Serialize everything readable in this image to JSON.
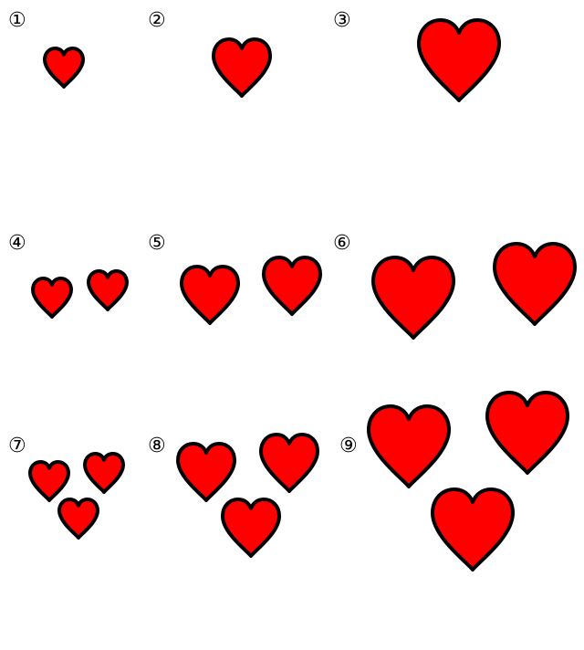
{
  "colors": {
    "heart_fill": "#ff0000",
    "heart_stroke": "#000000",
    "background": "#ffffff"
  },
  "panels": [
    {
      "label": "①",
      "heart_count": 1
    },
    {
      "label": "②",
      "heart_count": 1
    },
    {
      "label": "③",
      "heart_count": 1
    },
    {
      "label": "④",
      "heart_count": 2
    },
    {
      "label": "⑤",
      "heart_count": 2
    },
    {
      "label": "⑥",
      "heart_count": 2
    },
    {
      "label": "⑦",
      "heart_count": 3
    },
    {
      "label": "⑧",
      "heart_count": 3
    },
    {
      "label": "⑨",
      "heart_count": 3
    }
  ]
}
